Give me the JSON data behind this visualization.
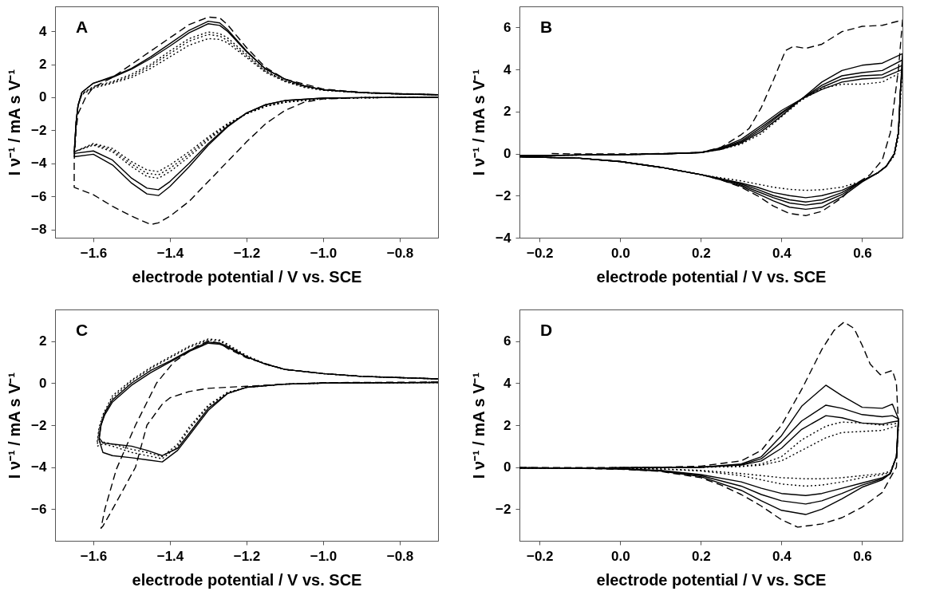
{
  "chart_data": [
    {
      "type": "line",
      "annotations": [
        "A"
      ],
      "xlabel": "electrode potential / V vs. SCE",
      "ylabel": "I ν⁻¹ / mA s V⁻¹",
      "xlim": [
        -1.7,
        -0.7
      ],
      "ylim": [
        -8.5,
        5.5
      ],
      "xticks": [
        {
          "value": -1.6,
          "label": "−1.6"
        },
        {
          "value": -1.4,
          "label": "−1.4"
        },
        {
          "value": -1.2,
          "label": "−1.2"
        },
        {
          "value": -1.0,
          "label": "−1.0"
        },
        {
          "value": -0.8,
          "label": "−0.8"
        }
      ],
      "yticks": [
        {
          "value": -8,
          "label": "−8"
        },
        {
          "value": -6,
          "label": "−6"
        },
        {
          "value": -4,
          "label": "−4"
        },
        {
          "value": -2,
          "label": "−2"
        },
        0,
        2,
        4
      ],
      "series": [
        {
          "color": "#000000",
          "line_style": "dashed",
          "x": [
            -0.7,
            -0.9,
            -1.0,
            -1.05,
            -1.1,
            -1.15,
            -1.2,
            -1.25,
            -1.3,
            -1.35,
            -1.4,
            -1.43,
            -1.45,
            -1.5,
            -1.55,
            -1.6,
            -1.65,
            -1.65,
            -1.645,
            -1.64,
            -1.62,
            -1.6,
            -1.55,
            -1.5,
            -1.45,
            -1.4,
            -1.35,
            -1.3,
            -1.27,
            -1.25,
            -1.2,
            -1.15,
            -1.1,
            -1.0,
            -0.9,
            -0.7
          ],
          "values": [
            0,
            -0.03,
            -0.1,
            -0.3,
            -0.8,
            -1.6,
            -2.7,
            -3.9,
            -5.1,
            -6.3,
            -7.2,
            -7.6,
            -7.7,
            -7.2,
            -6.6,
            -5.9,
            -5.45,
            -3.8,
            -2,
            -1,
            0,
            0.6,
            1.2,
            2.0,
            2.8,
            3.6,
            4.4,
            4.85,
            4.8,
            4.4,
            3.0,
            1.8,
            1.1,
            0.5,
            0.3,
            0.15
          ]
        },
        {
          "color": "#000000",
          "line_style": "solid",
          "x": [
            -0.7,
            -0.9,
            -1.0,
            -1.1,
            -1.15,
            -1.2,
            -1.25,
            -1.3,
            -1.35,
            -1.4,
            -1.43,
            -1.46,
            -1.5,
            -1.55,
            -1.6,
            -1.65,
            -1.645,
            -1.64,
            -1.63,
            -1.6,
            -1.55,
            -1.5,
            -1.45,
            -1.4,
            -1.35,
            -1.3,
            -1.27,
            -1.25,
            -1.2,
            -1.15,
            -1.1,
            -1.05,
            -1.0,
            -0.9,
            -0.8,
            -0.7
          ],
          "values": [
            0,
            -0.02,
            -0.05,
            -0.2,
            -0.45,
            -0.95,
            -1.8,
            -2.9,
            -4.2,
            -5.4,
            -5.95,
            -5.85,
            -5.2,
            -4.1,
            -3.45,
            -3.6,
            -1.5,
            -0.5,
            0.3,
            0.85,
            1.25,
            1.75,
            2.45,
            3.25,
            4.05,
            4.6,
            4.5,
            4.1,
            2.8,
            1.7,
            1.1,
            0.7,
            0.45,
            0.28,
            0.2,
            0.15
          ]
        },
        {
          "color": "#000000",
          "line_style": "solid",
          "x": [
            -0.7,
            -0.9,
            -1.0,
            -1.1,
            -1.15,
            -1.2,
            -1.25,
            -1.3,
            -1.35,
            -1.4,
            -1.43,
            -1.46,
            -1.5,
            -1.55,
            -1.6,
            -1.65,
            -1.645,
            -1.64,
            -1.63,
            -1.6,
            -1.55,
            -1.5,
            -1.45,
            -1.4,
            -1.35,
            -1.3,
            -1.27,
            -1.25,
            -1.2,
            -1.15,
            -1.1,
            -1.05,
            -1.0,
            -0.9,
            -0.8,
            -0.7
          ],
          "values": [
            0,
            -0.02,
            -0.05,
            -0.2,
            -0.45,
            -0.95,
            -1.75,
            -2.8,
            -4.0,
            -5.1,
            -5.6,
            -5.5,
            -4.9,
            -3.8,
            -3.25,
            -3.4,
            -1.5,
            -0.5,
            0.3,
            0.85,
            1.2,
            1.7,
            2.35,
            3.1,
            3.9,
            4.45,
            4.35,
            4.0,
            2.75,
            1.7,
            1.1,
            0.7,
            0.45,
            0.28,
            0.2,
            0.15
          ]
        },
        {
          "color": "#000000",
          "line_style": "dotted",
          "x": [
            -0.7,
            -0.9,
            -1.0,
            -1.1,
            -1.15,
            -1.2,
            -1.25,
            -1.3,
            -1.35,
            -1.4,
            -1.43,
            -1.46,
            -1.5,
            -1.55,
            -1.6,
            -1.65,
            -1.645,
            -1.64,
            -1.63,
            -1.6,
            -1.55,
            -1.5,
            -1.45,
            -1.4,
            -1.35,
            -1.3,
            -1.27,
            -1.25,
            -1.2,
            -1.15,
            -1.1,
            -1.05,
            -1.0,
            -0.9,
            -0.8,
            -0.7
          ],
          "values": [
            0,
            -0.03,
            -0.08,
            -0.3,
            -0.55,
            -1.0,
            -1.7,
            -2.6,
            -3.6,
            -4.5,
            -4.9,
            -4.8,
            -4.2,
            -3.3,
            -2.9,
            -3.3,
            -1.5,
            -0.5,
            0.2,
            0.65,
            0.95,
            1.4,
            2.0,
            2.8,
            3.55,
            3.95,
            3.85,
            3.6,
            2.6,
            1.6,
            1.0,
            0.65,
            0.45,
            0.28,
            0.2,
            0.15
          ]
        },
        {
          "color": "#000000",
          "line_style": "dotted",
          "x": [
            -0.7,
            -0.9,
            -1.0,
            -1.1,
            -1.15,
            -1.2,
            -1.25,
            -1.3,
            -1.35,
            -1.4,
            -1.43,
            -1.46,
            -1.5,
            -1.55,
            -1.6,
            -1.65,
            -1.645,
            -1.64,
            -1.63,
            -1.6,
            -1.55,
            -1.5,
            -1.45,
            -1.4,
            -1.35,
            -1.3,
            -1.27,
            -1.25,
            -1.2,
            -1.15,
            -1.1,
            -1.05,
            -1.0,
            -0.9,
            -0.8,
            -0.7
          ],
          "values": [
            0,
            -0.03,
            -0.08,
            -0.3,
            -0.55,
            -1.0,
            -1.65,
            -2.5,
            -3.45,
            -4.3,
            -4.7,
            -4.6,
            -4.05,
            -3.2,
            -2.85,
            -3.3,
            -1.5,
            -0.5,
            0.2,
            0.6,
            0.9,
            1.3,
            1.9,
            2.65,
            3.4,
            3.8,
            3.7,
            3.45,
            2.5,
            1.55,
            1.0,
            0.65,
            0.45,
            0.28,
            0.2,
            0.15
          ]
        },
        {
          "color": "#000000",
          "line_style": "dotted",
          "x": [
            -0.7,
            -0.9,
            -1.0,
            -1.1,
            -1.15,
            -1.2,
            -1.25,
            -1.3,
            -1.35,
            -1.4,
            -1.43,
            -1.46,
            -1.5,
            -1.55,
            -1.6,
            -1.65,
            -1.645,
            -1.64,
            -1.63,
            -1.6,
            -1.55,
            -1.5,
            -1.45,
            -1.4,
            -1.35,
            -1.3,
            -1.27,
            -1.25,
            -1.2,
            -1.15,
            -1.1,
            -1.05,
            -1.0,
            -0.9,
            -0.8,
            -0.7
          ],
          "values": [
            0,
            -0.03,
            -0.08,
            -0.3,
            -0.55,
            -1.0,
            -1.6,
            -2.4,
            -3.3,
            -4.1,
            -4.5,
            -4.4,
            -3.9,
            -3.1,
            -2.8,
            -3.3,
            -1.5,
            -0.5,
            0.15,
            0.55,
            0.85,
            1.2,
            1.75,
            2.45,
            3.15,
            3.55,
            3.5,
            3.3,
            2.4,
            1.5,
            0.95,
            0.6,
            0.42,
            0.27,
            0.2,
            0.15
          ]
        }
      ]
    },
    {
      "type": "line",
      "annotations": [
        "B"
      ],
      "xlabel": "electrode potential / V vs. SCE",
      "ylabel": "I ν⁻¹ / mA s V⁻¹",
      "xlim": [
        -0.25,
        0.7
      ],
      "ylim": [
        -4,
        7
      ],
      "xticks": [
        {
          "value": -0.2,
          "label": "−0.2"
        },
        {
          "value": 0,
          "label": "0.0"
        },
        0.2,
        0.4,
        0.6
      ],
      "yticks": [
        {
          "value": -4,
          "label": "−4"
        },
        {
          "value": -2,
          "label": "−2"
        },
        0,
        2,
        4,
        6
      ],
      "series": [
        {
          "color": "#000000",
          "line_style": "dashed",
          "x": [
            -0.17,
            -0.1,
            0.0,
            0.1,
            0.2,
            0.25,
            0.3,
            0.32,
            0.35,
            0.38,
            0.41,
            0.43,
            0.46,
            0.5,
            0.55,
            0.6,
            0.65,
            0.7,
            0.7,
            0.69,
            0.67,
            0.65,
            0.62,
            0.58,
            0.55,
            0.5,
            0.46,
            0.42,
            0.38,
            0.34,
            0.3,
            0.25,
            0.2,
            0.1,
            0.0,
            -0.1,
            -0.25
          ],
          "values": [
            0,
            -0.02,
            -0.02,
            0,
            0.05,
            0.3,
            0.9,
            1.2,
            2.2,
            3.5,
            4.9,
            5.1,
            5.0,
            5.2,
            5.8,
            6.05,
            6.1,
            6.35,
            6.3,
            4,
            1,
            -0.3,
            -1.0,
            -1.5,
            -2.1,
            -2.75,
            -2.95,
            -2.85,
            -2.5,
            -2.0,
            -1.6,
            -1.25,
            -1.0,
            -0.65,
            -0.38,
            -0.22,
            -0.15
          ]
        },
        {
          "color": "#000000",
          "line_style": "solid",
          "x": [
            -0.25,
            -0.1,
            0.0,
            0.1,
            0.2,
            0.25,
            0.3,
            0.35,
            0.4,
            0.45,
            0.5,
            0.55,
            0.6,
            0.65,
            0.7,
            0.695,
            0.69,
            0.68,
            0.66,
            0.64,
            0.6,
            0.55,
            0.5,
            0.46,
            0.42,
            0.38,
            0.34,
            0.3,
            0.25,
            0.2,
            0.1,
            0.0,
            -0.1,
            -0.25
          ],
          "values": [
            -0.1,
            -0.07,
            -0.05,
            -0.02,
            0.05,
            0.2,
            0.5,
            1.05,
            1.8,
            2.6,
            3.4,
            3.95,
            4.2,
            4.3,
            4.75,
            3,
            1,
            0,
            -0.6,
            -0.9,
            -1.3,
            -1.75,
            -2.0,
            -2.1,
            -2.0,
            -1.85,
            -1.6,
            -1.4,
            -1.2,
            -1.0,
            -0.65,
            -0.38,
            -0.22,
            -0.15
          ]
        },
        {
          "color": "#000000",
          "line_style": "solid",
          "x": [
            -0.25,
            -0.1,
            0.0,
            0.1,
            0.2,
            0.25,
            0.3,
            0.35,
            0.4,
            0.45,
            0.5,
            0.55,
            0.6,
            0.65,
            0.7,
            0.695,
            0.69,
            0.68,
            0.66,
            0.64,
            0.6,
            0.55,
            0.5,
            0.46,
            0.42,
            0.38,
            0.34,
            0.3,
            0.25,
            0.2,
            0.1,
            0.0,
            -0.1,
            -0.25
          ],
          "values": [
            -0.1,
            -0.07,
            -0.05,
            -0.02,
            0.05,
            0.22,
            0.55,
            1.15,
            1.9,
            2.6,
            3.25,
            3.7,
            3.85,
            3.95,
            4.45,
            3,
            1,
            0,
            -0.6,
            -0.9,
            -1.3,
            -1.85,
            -2.2,
            -2.3,
            -2.2,
            -2.0,
            -1.7,
            -1.45,
            -1.2,
            -1.0,
            -0.65,
            -0.38,
            -0.22,
            -0.15
          ]
        },
        {
          "color": "#000000",
          "line_style": "solid",
          "x": [
            -0.25,
            -0.1,
            0.0,
            0.1,
            0.2,
            0.25,
            0.3,
            0.35,
            0.4,
            0.45,
            0.5,
            0.55,
            0.6,
            0.65,
            0.7,
            0.695,
            0.69,
            0.68,
            0.66,
            0.64,
            0.6,
            0.55,
            0.5,
            0.46,
            0.42,
            0.38,
            0.34,
            0.3,
            0.25,
            0.2,
            0.1,
            0.0,
            -0.1,
            -0.25
          ],
          "values": [
            -0.1,
            -0.07,
            -0.05,
            -0.02,
            0.05,
            0.25,
            0.6,
            1.25,
            1.95,
            2.6,
            3.15,
            3.55,
            3.7,
            3.75,
            4.2,
            3,
            1,
            0,
            -0.6,
            -0.9,
            -1.3,
            -1.95,
            -2.35,
            -2.45,
            -2.35,
            -2.1,
            -1.8,
            -1.5,
            -1.2,
            -1.0,
            -0.65,
            -0.38,
            -0.22,
            -0.15
          ]
        },
        {
          "color": "#000000",
          "line_style": "solid",
          "x": [
            -0.25,
            -0.1,
            0.0,
            0.1,
            0.2,
            0.25,
            0.3,
            0.35,
            0.4,
            0.45,
            0.5,
            0.55,
            0.6,
            0.65,
            0.7,
            0.695,
            0.69,
            0.68,
            0.66,
            0.64,
            0.6,
            0.55,
            0.5,
            0.46,
            0.42,
            0.38,
            0.34,
            0.3,
            0.25,
            0.2,
            0.1,
            0.0,
            -0.1,
            -0.25
          ],
          "values": [
            -0.1,
            -0.07,
            -0.05,
            -0.02,
            0.05,
            0.28,
            0.68,
            1.35,
            2.05,
            2.6,
            3.05,
            3.4,
            3.55,
            3.6,
            4.0,
            3,
            1,
            0,
            -0.6,
            -0.9,
            -1.35,
            -2.05,
            -2.55,
            -2.65,
            -2.55,
            -2.25,
            -1.9,
            -1.55,
            -1.25,
            -1.0,
            -0.65,
            -0.38,
            -0.22,
            -0.15
          ]
        },
        {
          "color": "#000000",
          "line_style": "dotted",
          "x": [
            -0.25,
            -0.1,
            0.0,
            0.1,
            0.2,
            0.25,
            0.3,
            0.35,
            0.4,
            0.45,
            0.5,
            0.55,
            0.6,
            0.65,
            0.7,
            0.695,
            0.69,
            0.68,
            0.66,
            0.64,
            0.6,
            0.55,
            0.5,
            0.46,
            0.42,
            0.38,
            0.34,
            0.3,
            0.25,
            0.2,
            0.1,
            0.0,
            -0.1,
            -0.25
          ],
          "values": [
            -0.1,
            -0.07,
            -0.05,
            -0.02,
            0.05,
            0.2,
            0.45,
            0.95,
            1.75,
            2.55,
            3.1,
            3.3,
            3.3,
            3.4,
            3.9,
            2.5,
            0.8,
            -0.1,
            -0.6,
            -0.9,
            -1.3,
            -1.6,
            -1.72,
            -1.75,
            -1.7,
            -1.6,
            -1.45,
            -1.3,
            -1.15,
            -1.0,
            -0.65,
            -0.38,
            -0.22,
            -0.15
          ]
        }
      ]
    },
    {
      "type": "line",
      "annotations": [
        "C"
      ],
      "xlabel": "electrode potential / V vs. SCE",
      "ylabel": "I ν⁻¹ / mA s V⁻¹",
      "xlim": [
        -1.7,
        -0.7
      ],
      "ylim": [
        -7.5,
        3.5
      ],
      "xticks": [
        {
          "value": -1.6,
          "label": "−1.6"
        },
        {
          "value": -1.4,
          "label": "−1.4"
        },
        {
          "value": -1.2,
          "label": "−1.2"
        },
        {
          "value": -1.0,
          "label": "−1.0"
        },
        {
          "value": -0.8,
          "label": "−0.8"
        }
      ],
      "yticks": [
        {
          "value": -6,
          "label": "−6"
        },
        {
          "value": -4,
          "label": "−4"
        },
        {
          "value": -2,
          "label": "−2"
        },
        0,
        2
      ],
      "series": [
        {
          "color": "#000000",
          "line_style": "dashed",
          "x": [
            -0.7,
            -1.0,
            -1.1,
            -1.2,
            -1.3,
            -1.35,
            -1.4,
            -1.42,
            -1.46,
            -1.49,
            -1.52,
            -1.55,
            -1.575,
            -1.58,
            -1.57,
            -1.54,
            -1.49,
            -1.435,
            -1.39,
            -1.33,
            -1.3,
            -1.27,
            -1.25,
            -1.2,
            -1.1,
            -1.0,
            -0.9,
            -0.7
          ],
          "values": [
            0.05,
            0.02,
            -0.05,
            -0.15,
            -0.25,
            -0.4,
            -0.7,
            -1.0,
            -2.0,
            -4.0,
            -5.0,
            -6.0,
            -6.8,
            -6.9,
            -6.0,
            -4.1,
            -2.0,
            0,
            1.0,
            1.75,
            2.0,
            1.9,
            1.65,
            1.2,
            0.65,
            0.45,
            0.32,
            0.2
          ]
        },
        {
          "color": "#000000",
          "line_style": "solid",
          "x": [
            -0.7,
            -1.0,
            -1.1,
            -1.2,
            -1.25,
            -1.3,
            -1.35,
            -1.38,
            -1.42,
            -1.46,
            -1.5,
            -1.55,
            -1.575,
            -1.585,
            -1.58,
            -1.57,
            -1.55,
            -1.5,
            -1.45,
            -1.4,
            -1.35,
            -1.3,
            -1.27,
            -1.25,
            -1.2,
            -1.15,
            -1.1,
            -1.0,
            -0.9,
            -0.7
          ],
          "values": [
            0.03,
            0,
            -0.05,
            -0.2,
            -0.5,
            -1.3,
            -2.5,
            -3.2,
            -3.75,
            -3.65,
            -3.55,
            -3.45,
            -3.3,
            -2.7,
            -2.0,
            -1.5,
            -0.9,
            -0.1,
            0.5,
            1.0,
            1.5,
            1.9,
            1.85,
            1.7,
            1.25,
            0.9,
            0.65,
            0.45,
            0.32,
            0.2
          ]
        },
        {
          "color": "#000000",
          "line_style": "solid",
          "x": [
            -0.7,
            -1.0,
            -1.1,
            -1.2,
            -1.25,
            -1.3,
            -1.35,
            -1.38,
            -1.42,
            -1.46,
            -1.5,
            -1.55,
            -1.575,
            -1.585,
            -1.58,
            -1.57,
            -1.55,
            -1.5,
            -1.45,
            -1.4,
            -1.35,
            -1.3,
            -1.27,
            -1.25,
            -1.2,
            -1.15,
            -1.1,
            -1.0,
            -0.9,
            -0.7
          ],
          "values": [
            0.03,
            0,
            -0.05,
            -0.2,
            -0.5,
            -1.2,
            -2.4,
            -3.1,
            -3.45,
            -3.2,
            -3.0,
            -2.9,
            -2.85,
            -2.6,
            -2.0,
            -1.4,
            -0.8,
            0,
            0.6,
            1.05,
            1.55,
            1.95,
            1.9,
            1.75,
            1.25,
            0.9,
            0.65,
            0.45,
            0.32,
            0.2
          ]
        },
        {
          "color": "#000000",
          "line_style": "dotted",
          "x": [
            -0.7,
            -1.0,
            -1.1,
            -1.2,
            -1.25,
            -1.3,
            -1.35,
            -1.38,
            -1.42,
            -1.46,
            -1.5,
            -1.55,
            -1.575,
            -1.59,
            -1.585,
            -1.575,
            -1.55,
            -1.5,
            -1.45,
            -1.4,
            -1.35,
            -1.3,
            -1.27,
            -1.25,
            -1.2,
            -1.15,
            -1.1,
            -1.0,
            -0.9,
            -0.7
          ],
          "values": [
            0.03,
            0,
            -0.05,
            -0.2,
            -0.45,
            -1.1,
            -2.2,
            -3.0,
            -3.6,
            -3.45,
            -3.3,
            -3.0,
            -2.9,
            -3.0,
            -2.2,
            -1.6,
            -0.7,
            0.1,
            0.7,
            1.2,
            1.7,
            2.05,
            2.0,
            1.8,
            1.3,
            0.9,
            0.65,
            0.45,
            0.32,
            0.2
          ]
        },
        {
          "color": "#000000",
          "line_style": "dotted",
          "x": [
            -0.7,
            -1.0,
            -1.1,
            -1.2,
            -1.25,
            -1.3,
            -1.35,
            -1.38,
            -1.42,
            -1.46,
            -1.5,
            -1.55,
            -1.575,
            -1.59,
            -1.585,
            -1.575,
            -1.55,
            -1.5,
            -1.45,
            -1.4,
            -1.35,
            -1.3,
            -1.27,
            -1.25,
            -1.2,
            -1.15,
            -1.1,
            -1.0,
            -0.9,
            -0.7
          ],
          "values": [
            0.03,
            0,
            -0.05,
            -0.2,
            -0.45,
            -1.05,
            -2.1,
            -2.9,
            -3.5,
            -3.3,
            -3.15,
            -2.9,
            -2.8,
            -2.8,
            -2.1,
            -1.5,
            -0.6,
            0.15,
            0.75,
            1.25,
            1.75,
            2.1,
            2.05,
            1.85,
            1.3,
            0.9,
            0.65,
            0.45,
            0.32,
            0.2
          ]
        }
      ]
    },
    {
      "type": "line",
      "annotations": [
        "D"
      ],
      "xlabel": "electrode potential / V vs. SCE",
      "ylabel": "I ν⁻¹ / mA s V⁻¹",
      "xlim": [
        -0.25,
        0.7
      ],
      "ylim": [
        -3.5,
        7.5
      ],
      "xticks": [
        {
          "value": -0.2,
          "label": "−0.2"
        },
        {
          "value": 0,
          "label": "0.0"
        },
        0.2,
        0.4,
        0.6
      ],
      "yticks": [
        {
          "value": -2,
          "label": "−2"
        },
        0,
        2,
        4,
        6
      ],
      "series": [
        {
          "color": "#000000",
          "line_style": "dashed",
          "x": [
            -0.25,
            -0.1,
            0.0,
            0.1,
            0.2,
            0.3,
            0.35,
            0.4,
            0.45,
            0.5,
            0.53,
            0.555,
            0.58,
            0.6,
            0.62,
            0.645,
            0.675,
            0.685,
            0.69,
            0.685,
            0.67,
            0.65,
            0.6,
            0.55,
            0.5,
            0.44,
            0.4,
            0.35,
            0.3,
            0.25,
            0.2,
            0.1,
            0.0,
            -0.1,
            -0.25
          ],
          "values": [
            -0.02,
            -0.02,
            -0.02,
            0,
            0.05,
            0.3,
            0.8,
            2.0,
            3.7,
            5.6,
            6.5,
            6.9,
            6.6,
            5.8,
            4.9,
            4.4,
            4.6,
            4.0,
            2.0,
            0,
            -0.5,
            -1.2,
            -1.9,
            -2.4,
            -2.7,
            -2.85,
            -2.5,
            -1.85,
            -1.3,
            -0.85,
            -0.5,
            -0.2,
            -0.1,
            -0.06,
            -0.03
          ]
        },
        {
          "color": "#000000",
          "line_style": "solid",
          "x": [
            -0.25,
            -0.1,
            0.0,
            0.1,
            0.2,
            0.3,
            0.35,
            0.4,
            0.45,
            0.51,
            0.55,
            0.6,
            0.65,
            0.675,
            0.69,
            0.685,
            0.67,
            0.65,
            0.6,
            0.55,
            0.5,
            0.46,
            0.4,
            0.35,
            0.3,
            0.2,
            0.1,
            0.0,
            -0.1,
            -0.25
          ],
          "values": [
            -0.04,
            -0.04,
            -0.03,
            -0.02,
            0,
            0.15,
            0.5,
            1.5,
            2.9,
            3.9,
            3.4,
            2.85,
            2.8,
            3.0,
            2.3,
            0.5,
            -0.3,
            -0.5,
            -0.75,
            -1.0,
            -1.25,
            -1.35,
            -1.25,
            -1.0,
            -0.7,
            -0.35,
            -0.15,
            -0.08,
            -0.05,
            -0.03
          ]
        },
        {
          "color": "#000000",
          "line_style": "solid",
          "x": [
            -0.25,
            -0.1,
            0.0,
            0.1,
            0.2,
            0.3,
            0.35,
            0.4,
            0.45,
            0.51,
            0.55,
            0.6,
            0.65,
            0.675,
            0.69,
            0.685,
            0.67,
            0.65,
            0.6,
            0.55,
            0.5,
            0.46,
            0.4,
            0.35,
            0.3,
            0.2,
            0.1,
            0.0,
            -0.1,
            -0.25
          ],
          "values": [
            -0.04,
            -0.04,
            -0.03,
            -0.02,
            0,
            0.12,
            0.4,
            1.2,
            2.2,
            2.95,
            2.8,
            2.5,
            2.4,
            2.45,
            2.3,
            0.5,
            -0.3,
            -0.55,
            -0.85,
            -1.25,
            -1.6,
            -1.75,
            -1.6,
            -1.3,
            -0.9,
            -0.4,
            -0.17,
            -0.08,
            -0.05,
            -0.03
          ]
        },
        {
          "color": "#000000",
          "line_style": "solid",
          "x": [
            -0.25,
            -0.1,
            0.0,
            0.1,
            0.2,
            0.3,
            0.35,
            0.4,
            0.45,
            0.51,
            0.55,
            0.6,
            0.65,
            0.675,
            0.69,
            0.685,
            0.67,
            0.65,
            0.6,
            0.55,
            0.5,
            0.46,
            0.4,
            0.35,
            0.3,
            0.2,
            0.1,
            0.0,
            -0.1,
            -0.25
          ],
          "values": [
            -0.04,
            -0.04,
            -0.03,
            -0.02,
            0,
            0.1,
            0.3,
            0.9,
            1.8,
            2.45,
            2.35,
            2.1,
            2.05,
            2.15,
            2.2,
            0.5,
            -0.3,
            -0.6,
            -0.95,
            -1.5,
            -2.0,
            -2.25,
            -2.05,
            -1.6,
            -1.1,
            -0.45,
            -0.18,
            -0.08,
            -0.05,
            -0.03
          ]
        },
        {
          "color": "#000000",
          "line_style": "dotted",
          "x": [
            -0.25,
            -0.1,
            0.0,
            0.1,
            0.2,
            0.3,
            0.35,
            0.4,
            0.45,
            0.51,
            0.55,
            0.6,
            0.65,
            0.675,
            0.69,
            0.685,
            0.67,
            0.65,
            0.6,
            0.55,
            0.5,
            0.46,
            0.4,
            0.35,
            0.3,
            0.2,
            0.1,
            0.0,
            -0.1,
            -0.25
          ],
          "values": [
            -0.04,
            -0.04,
            -0.03,
            -0.02,
            0,
            0.05,
            0.15,
            0.5,
            1.3,
            1.95,
            2.15,
            2.1,
            2.0,
            2.05,
            2.1,
            0.5,
            -0.2,
            -0.3,
            -0.4,
            -0.5,
            -0.55,
            -0.55,
            -0.5,
            -0.4,
            -0.3,
            -0.15,
            -0.08,
            -0.05,
            -0.04,
            -0.03
          ]
        },
        {
          "color": "#000000",
          "line_style": "dotted",
          "x": [
            -0.25,
            -0.1,
            0.0,
            0.1,
            0.2,
            0.3,
            0.35,
            0.4,
            0.45,
            0.51,
            0.55,
            0.6,
            0.65,
            0.675,
            0.69,
            0.685,
            0.67,
            0.65,
            0.6,
            0.55,
            0.5,
            0.46,
            0.4,
            0.35,
            0.3,
            0.2,
            0.1,
            0.0,
            -0.1,
            -0.25
          ],
          "values": [
            -0.04,
            -0.04,
            -0.03,
            -0.02,
            0,
            0.03,
            0.1,
            0.3,
            0.8,
            1.4,
            1.65,
            1.7,
            1.75,
            1.9,
            2.0,
            0.5,
            -0.25,
            -0.35,
            -0.5,
            -0.7,
            -0.85,
            -0.9,
            -0.8,
            -0.6,
            -0.4,
            -0.18,
            -0.09,
            -0.05,
            -0.04,
            -0.03
          ]
        }
      ]
    }
  ]
}
